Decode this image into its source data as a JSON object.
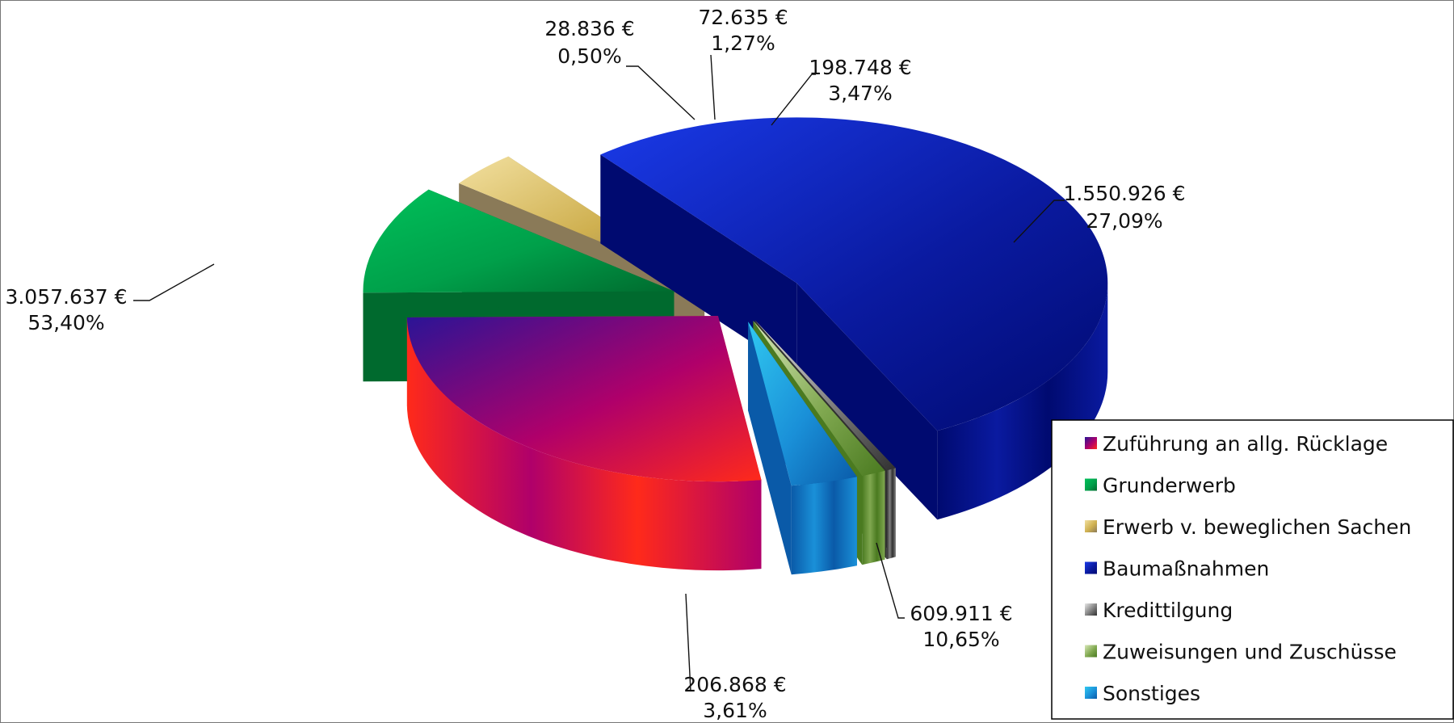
{
  "chart_data": {
    "type": "pie",
    "variant": "3d-exploded",
    "title": "",
    "currency": "€",
    "legend_position": "bottom-right",
    "slices": [
      {
        "key": "ruecklage",
        "name": "Zuführung an allg. Rücklage",
        "value": 1550926,
        "value_label": "1.550.926 €",
        "percent_label": "27,09%",
        "colors": [
          "#2a1496",
          "#b0006a",
          "#ff2a1a"
        ]
      },
      {
        "key": "grund",
        "name": "Grunderwerb",
        "value": 609911,
        "value_label": "609.911 €",
        "percent_label": "10,65%",
        "colors": [
          "#00c05a",
          "#00a04a",
          "#006a2e"
        ]
      },
      {
        "key": "beweglich",
        "name": "Erwerb v. beweglichen Sachen",
        "value": 206868,
        "value_label": "206.868 €",
        "percent_label": "3,61%",
        "colors": [
          "#f2e0a0",
          "#cfb050",
          "#8a7a58"
        ]
      },
      {
        "key": "bau",
        "name": "Baumaßnahmen",
        "value": 3057637,
        "value_label": "3.057.637 €",
        "percent_label": "53,40%",
        "colors": [
          "#1a3ae8",
          "#0a1aa0",
          "#000a70"
        ]
      },
      {
        "key": "kredit",
        "name": "Kredittilgung",
        "value": 28836,
        "value_label": "28.836 €",
        "percent_label": "0,50%",
        "colors": [
          "#e8e8e8",
          "#808080",
          "#303030"
        ]
      },
      {
        "key": "zuweis",
        "name": "Zuweisungen und Zuschüsse",
        "value": 72635,
        "value_label": "72.635 €",
        "percent_label": "1,27%",
        "colors": [
          "#d8e8b8",
          "#80a850",
          "#4a7a20"
        ]
      },
      {
        "key": "sonst",
        "name": "Sonstiges",
        "value": 198748,
        "value_label": "198.748 €",
        "percent_label": "3,47%",
        "colors": [
          "#30c8f0",
          "#1a90d8",
          "#0a5aa8"
        ]
      }
    ]
  }
}
